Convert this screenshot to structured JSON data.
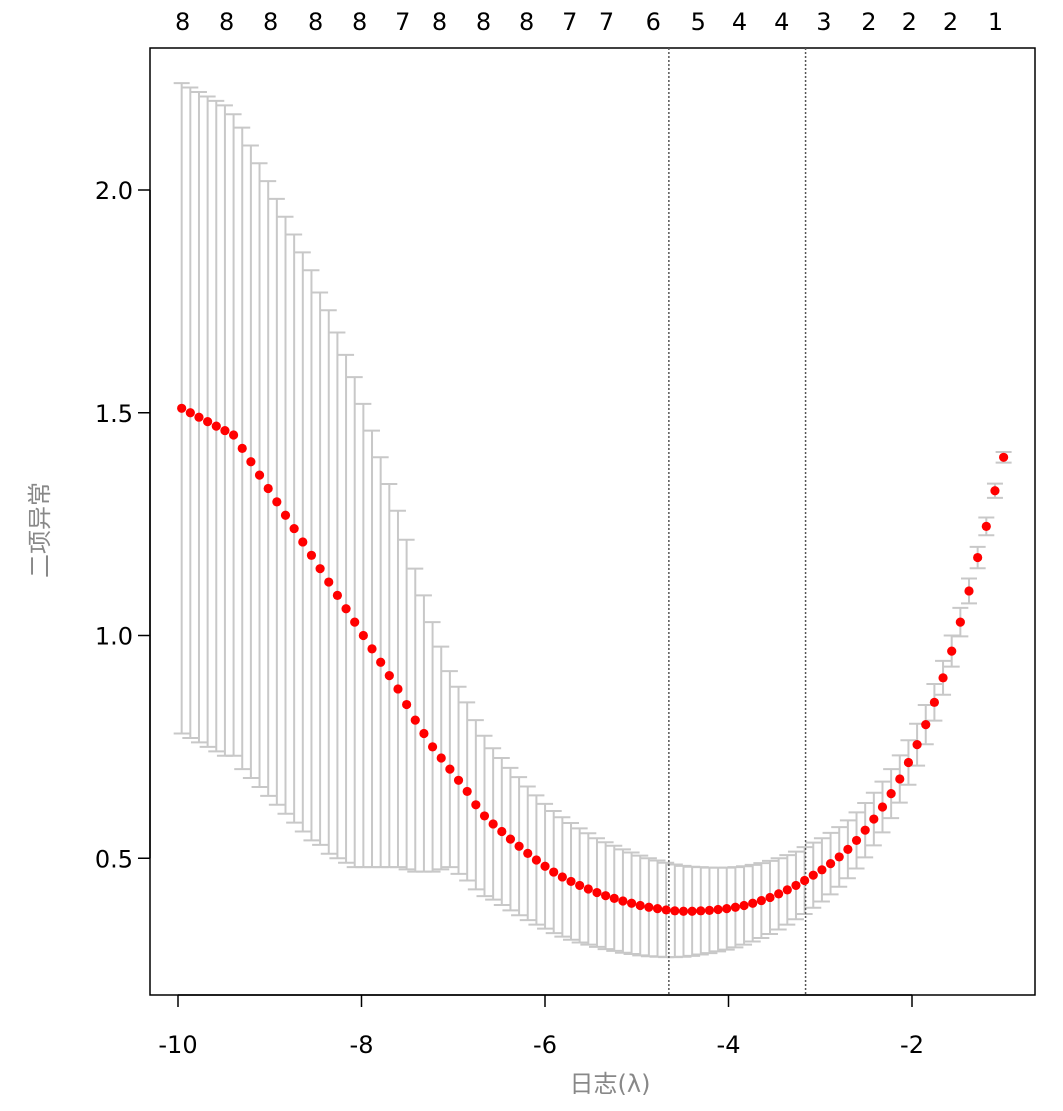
{
  "chart_data": {
    "type": "scatter",
    "xlabel": "日志(λ)",
    "ylabel": "二项异常",
    "xlim": [
      -10.3,
      -0.6
    ],
    "ylim": [
      0.21,
      2.33
    ],
    "grid": false,
    "x_ticks": [
      -10,
      -8,
      -6,
      -4,
      -2
    ],
    "x_tick_labels": [
      "-10",
      "-8",
      "-6",
      "-4",
      "-2"
    ],
    "y_ticks": [
      0.5,
      1.0,
      1.5,
      2.0
    ],
    "y_tick_labels": [
      "0.5",
      "1.0",
      "1.5",
      "2.0"
    ],
    "top_axis": {
      "positions": [
        -9.95,
        -9.47,
        -8.99,
        -8.5,
        -8.02,
        -7.55,
        -7.15,
        -6.67,
        -6.2,
        -5.73,
        -5.33,
        -4.82,
        -4.33,
        -3.88,
        -3.42,
        -2.96,
        -2.47,
        -2.03,
        -1.58,
        -1.09
      ],
      "labels": [
        "8",
        "8",
        "8",
        "8",
        "8",
        "7",
        "8",
        "8",
        "8",
        "7",
        "7",
        "6",
        "5",
        "4",
        "4",
        "3",
        "2",
        "2",
        "2",
        "1"
      ]
    },
    "vlines": [
      -4.65,
      -3.16
    ],
    "x_start": -9.96,
    "x_step": 0.0943,
    "mean": [
      1.51,
      1.5,
      1.49,
      1.48,
      1.47,
      1.46,
      1.45,
      1.42,
      1.39,
      1.36,
      1.33,
      1.3,
      1.27,
      1.24,
      1.21,
      1.18,
      1.15,
      1.12,
      1.09,
      1.06,
      1.03,
      1.0,
      0.97,
      0.94,
      0.91,
      0.88,
      0.845,
      0.81,
      0.78,
      0.75,
      0.725,
      0.7,
      0.675,
      0.65,
      0.62,
      0.595,
      0.577,
      0.56,
      0.543,
      0.527,
      0.511,
      0.496,
      0.482,
      0.469,
      0.458,
      0.448,
      0.439,
      0.431,
      0.423,
      0.416,
      0.41,
      0.404,
      0.399,
      0.394,
      0.39,
      0.387,
      0.384,
      0.382,
      0.381,
      0.381,
      0.382,
      0.383,
      0.385,
      0.387,
      0.39,
      0.394,
      0.399,
      0.405,
      0.412,
      0.42,
      0.429,
      0.439,
      0.45,
      0.462,
      0.474,
      0.488,
      0.503,
      0.52,
      0.54,
      0.563,
      0.588,
      0.615,
      0.645,
      0.678,
      0.715,
      0.755,
      0.8,
      0.85,
      0.905,
      0.965,
      1.03,
      1.1,
      1.175,
      1.245,
      1.325,
      1.4
    ],
    "se": [
      0.73,
      0.73,
      0.73,
      0.73,
      0.73,
      0.73,
      0.72,
      0.72,
      0.71,
      0.7,
      0.69,
      0.68,
      0.67,
      0.66,
      0.65,
      0.64,
      0.62,
      0.61,
      0.59,
      0.57,
      0.55,
      0.52,
      0.49,
      0.46,
      0.43,
      0.4,
      0.37,
      0.34,
      0.31,
      0.28,
      0.25,
      0.22,
      0.21,
      0.2,
      0.19,
      0.18,
      0.17,
      0.165,
      0.16,
      0.155,
      0.15,
      0.145,
      0.14,
      0.137,
      0.134,
      0.131,
      0.128,
      0.125,
      0.122,
      0.12,
      0.118,
      0.116,
      0.114,
      0.112,
      0.11,
      0.108,
      0.106,
      0.104,
      0.102,
      0.1,
      0.098,
      0.096,
      0.094,
      0.092,
      0.09,
      0.088,
      0.086,
      0.084,
      0.082,
      0.08,
      0.078,
      0.076,
      0.075,
      0.073,
      0.071,
      0.069,
      0.067,
      0.065,
      0.063,
      0.061,
      0.059,
      0.057,
      0.055,
      0.053,
      0.05,
      0.047,
      0.044,
      0.041,
      0.038,
      0.035,
      0.032,
      0.028,
      0.024,
      0.02,
      0.016,
      0.012
    ],
    "colors": {
      "points": "#ff0000",
      "errorbars": "#c8c8c8",
      "vlines": "#555555",
      "axis": "#000000"
    }
  }
}
